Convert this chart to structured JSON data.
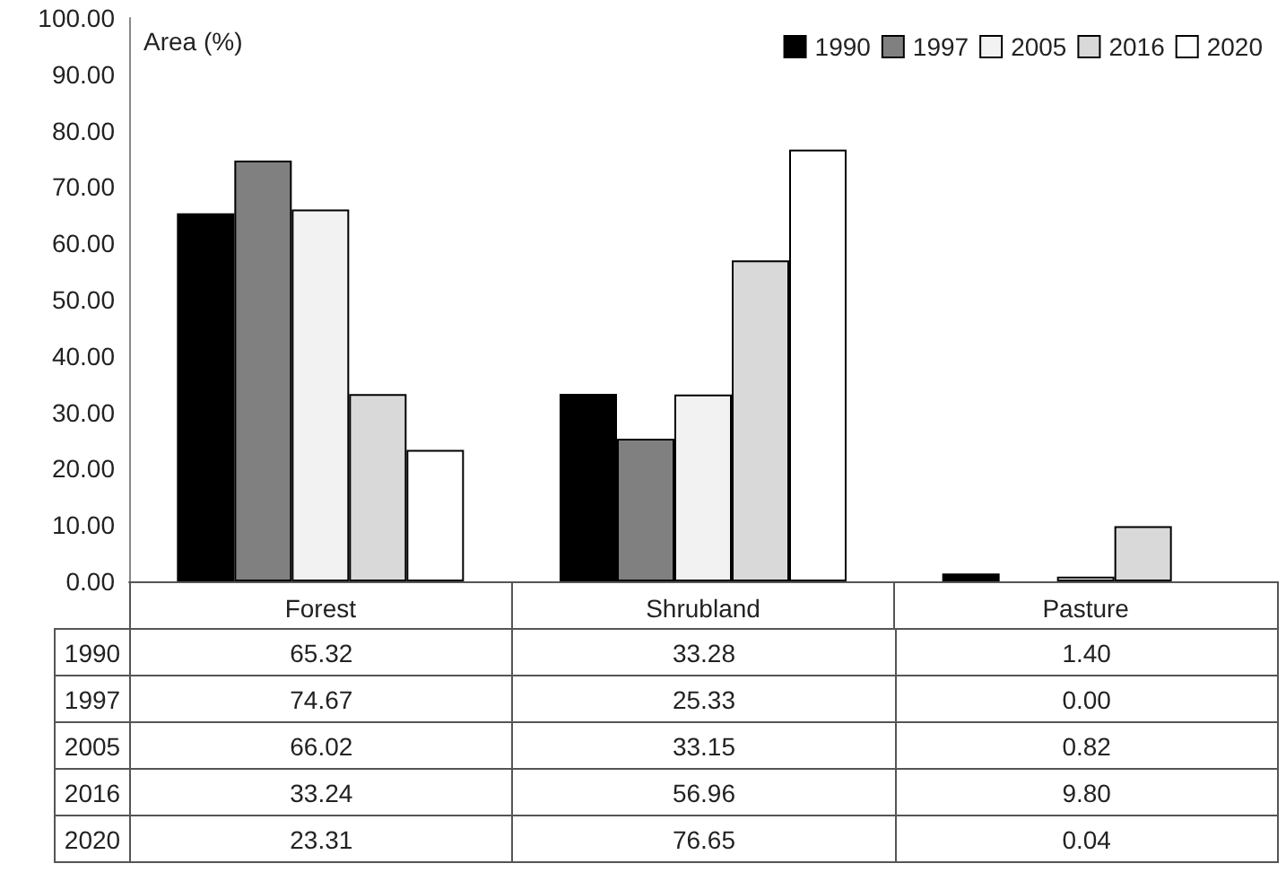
{
  "chart_data": {
    "type": "bar",
    "ylabel": "Area (%)",
    "categories": [
      "Forest",
      "Shrubland",
      "Pasture"
    ],
    "series": [
      {
        "name": "1990",
        "color": "#000000",
        "values": [
          65.32,
          33.28,
          1.4
        ],
        "value_labels": [
          "65.32",
          "33.28",
          "1.40"
        ]
      },
      {
        "name": "1997",
        "color": "#808080",
        "values": [
          74.67,
          25.33,
          0.0
        ],
        "value_labels": [
          "74.67",
          "25.33",
          "0.00"
        ]
      },
      {
        "name": "2005",
        "color": "#f2f2f2",
        "values": [
          66.02,
          33.15,
          0.82
        ],
        "value_labels": [
          "66.02",
          "33.15",
          "0.82"
        ]
      },
      {
        "name": "2016",
        "color": "#d9d9d9",
        "values": [
          33.24,
          56.96,
          9.8
        ],
        "value_labels": [
          "33.24",
          "56.96",
          "9.80"
        ]
      },
      {
        "name": "2020",
        "color": "#ffffff",
        "values": [
          23.31,
          76.65,
          0.04
        ],
        "value_labels": [
          "23.31",
          "76.65",
          "0.04"
        ]
      }
    ],
    "ylim": [
      0,
      100
    ],
    "yticks": [
      {
        "value": 0,
        "label": "0.00"
      },
      {
        "value": 10,
        "label": "10.00"
      },
      {
        "value": 20,
        "label": "20.00"
      },
      {
        "value": 30,
        "label": "30.00"
      },
      {
        "value": 40,
        "label": "40.00"
      },
      {
        "value": 50,
        "label": "50.00"
      },
      {
        "value": 60,
        "label": "60.00"
      },
      {
        "value": 70,
        "label": "70.00"
      },
      {
        "value": 80,
        "label": "80.00"
      },
      {
        "value": 90,
        "label": "90.00"
      },
      {
        "value": 100,
        "label": "100.00"
      }
    ],
    "grid": false,
    "legend": "top right"
  }
}
